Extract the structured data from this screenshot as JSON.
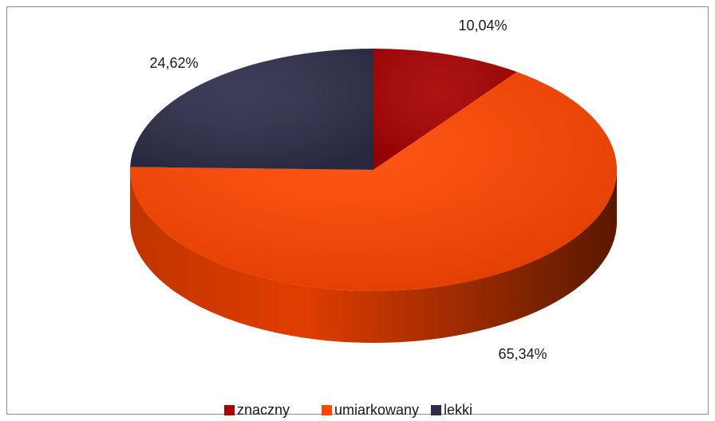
{
  "chart_data": {
    "type": "pie3d",
    "categories": [
      "znaczny",
      "umiarkowany",
      "lekki"
    ],
    "values": [
      10.04,
      65.34,
      24.62
    ],
    "value_labels": [
      "10,04%",
      "65,34%",
      "24,62%"
    ],
    "colors": [
      "#a60000",
      "#ff4600",
      "#2e2e4a"
    ],
    "legend": "bottom"
  }
}
